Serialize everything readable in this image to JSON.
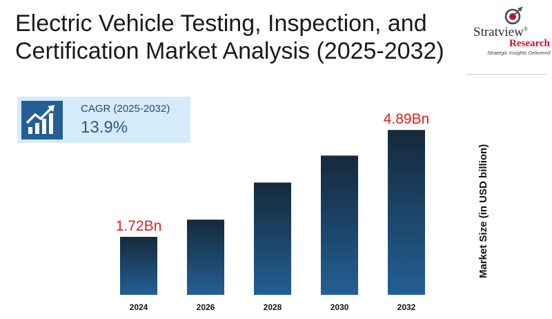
{
  "header": {
    "title_line1": "Electric Vehicle Testing, Inspection, and",
    "title_line2": "Certification Market Analysis (2025-2032)"
  },
  "logo": {
    "name": "Stratview",
    "registered": "®",
    "sub": "Research",
    "tagline": "Strategic Insights Delivered"
  },
  "cagr": {
    "label": "CAGR (2025-2032)",
    "value": "13.9%",
    "icon": "growth-chart-icon"
  },
  "colors": {
    "bar_top": "#15293a",
    "bar_bottom": "#235f95",
    "value_label": "#e0201b",
    "cagr_bg": "#d6ebfa",
    "cagr_icon_bg": "#235f95"
  },
  "chart_data": {
    "type": "bar",
    "categories": [
      "2024",
      "2026",
      "2028",
      "2030",
      "2032"
    ],
    "values": [
      1.72,
      2.23,
      3.33,
      4.13,
      4.89
    ],
    "value_labels": [
      "1.72Bn",
      "",
      "",
      "",
      "4.89Bn"
    ],
    "ylabel": "Market Size (in USD billion)",
    "ylim": [
      0,
      5.12
    ],
    "grid": false,
    "legend": "none"
  }
}
